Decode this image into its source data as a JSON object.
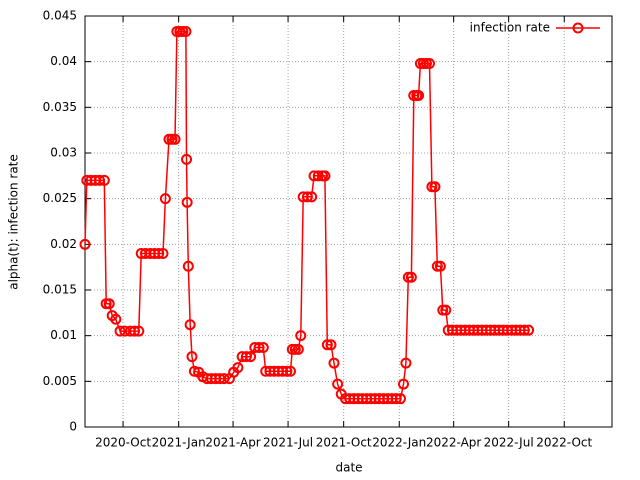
{
  "chart_data": {
    "type": "line",
    "xlabel": "date",
    "ylabel": "alpha(t): infection rate",
    "x": [
      "2020-07-30",
      "2020-08-02",
      "2020-08-09",
      "2020-08-16",
      "2020-08-23",
      "2020-08-31",
      "2020-09-03",
      "2020-09-08",
      "2020-09-13",
      "2020-09-19",
      "2020-09-26",
      "2020-10-04",
      "2020-10-13",
      "2020-10-20",
      "2020-10-27",
      "2020-10-31",
      "2020-11-07",
      "2020-11-15",
      "2020-11-22",
      "2020-11-29",
      "2020-12-06",
      "2020-12-10",
      "2020-12-16",
      "2020-12-21",
      "2020-12-26",
      "2020-12-29",
      "2021-01-03",
      "2021-01-08",
      "2021-01-13",
      "2021-01-14",
      "2021-01-15",
      "2021-01-17",
      "2021-01-20",
      "2021-01-23",
      "2021-01-27",
      "2021-02-03",
      "2021-02-10",
      "2021-02-17",
      "2021-02-24",
      "2021-03-03",
      "2021-03-10",
      "2021-03-17",
      "2021-03-26",
      "2021-04-02",
      "2021-04-09",
      "2021-04-16",
      "2021-04-23",
      "2021-04-30",
      "2021-05-07",
      "2021-05-14",
      "2021-05-21",
      "2021-05-25",
      "2021-06-01",
      "2021-06-08",
      "2021-06-15",
      "2021-06-22",
      "2021-06-29",
      "2021-07-05",
      "2021-07-08",
      "2021-07-13",
      "2021-07-18",
      "2021-07-22",
      "2021-07-26",
      "2021-08-02",
      "2021-08-09",
      "2021-08-13",
      "2021-08-20",
      "2021-08-27",
      "2021-08-31",
      "2021-09-04",
      "2021-09-10",
      "2021-09-15",
      "2021-09-21",
      "2021-09-27",
      "2021-10-04",
      "2021-10-11",
      "2021-10-18",
      "2021-10-25",
      "2021-11-01",
      "2021-11-08",
      "2021-11-15",
      "2021-11-22",
      "2021-11-29",
      "2021-12-06",
      "2021-12-13",
      "2021-12-20",
      "2021-12-27",
      "2022-01-03",
      "2022-01-08",
      "2022-01-12",
      "2022-01-16",
      "2022-01-21",
      "2022-01-25",
      "2022-01-30",
      "2022-02-02",
      "2022-02-05",
      "2022-02-10",
      "2022-02-15",
      "2022-02-20",
      "2022-02-24",
      "2022-03-01",
      "2022-03-05",
      "2022-03-10",
      "2022-03-14",
      "2022-03-19",
      "2022-03-23",
      "2022-03-30",
      "2022-04-06",
      "2022-04-13",
      "2022-04-20",
      "2022-04-27",
      "2022-05-04",
      "2022-05-11",
      "2022-05-18",
      "2022-05-25",
      "2022-06-01",
      "2022-06-08",
      "2022-06-15",
      "2022-06-22",
      "2022-06-29",
      "2022-07-06",
      "2022-07-13",
      "2022-07-20",
      "2022-07-27",
      "2022-08-03"
    ],
    "series": [
      {
        "name": "infection rate",
        "color": "#ff0000",
        "values": [
          0.02,
          0.027,
          0.027,
          0.027,
          0.027,
          0.027,
          0.0135,
          0.0135,
          0.0122,
          0.0118,
          0.0105,
          0.0105,
          0.0105,
          0.0105,
          0.0105,
          0.019,
          0.019,
          0.019,
          0.019,
          0.019,
          0.019,
          0.025,
          0.0315,
          0.0315,
          0.0315,
          0.0433,
          0.0433,
          0.0433,
          0.0433,
          0.0293,
          0.0246,
          0.0176,
          0.0112,
          0.0077,
          0.0061,
          0.006,
          0.0055,
          0.0053,
          0.0053,
          0.0053,
          0.0053,
          0.0053,
          0.0053,
          0.006,
          0.0065,
          0.0077,
          0.0077,
          0.0077,
          0.0087,
          0.0087,
          0.0087,
          0.0061,
          0.0061,
          0.0061,
          0.0061,
          0.0061,
          0.0061,
          0.0061,
          0.0085,
          0.0085,
          0.0085,
          0.01,
          0.0252,
          0.0252,
          0.0252,
          0.0275,
          0.0275,
          0.0275,
          0.0275,
          0.009,
          0.009,
          0.007,
          0.0047,
          0.0036,
          0.0031,
          0.0031,
          0.0031,
          0.0031,
          0.0031,
          0.0031,
          0.0031,
          0.0031,
          0.0031,
          0.0031,
          0.0031,
          0.0031,
          0.0031,
          0.0031,
          0.0047,
          0.007,
          0.0164,
          0.0164,
          0.0363,
          0.0363,
          0.0363,
          0.0398,
          0.0398,
          0.0398,
          0.0398,
          0.0263,
          0.0263,
          0.0176,
          0.0176,
          0.0128,
          0.0128,
          0.0106,
          0.0106,
          0.0106,
          0.0106,
          0.0106,
          0.0106,
          0.0106,
          0.0106,
          0.0106,
          0.0106,
          0.0106,
          0.0106,
          0.0106,
          0.0106,
          0.0106,
          0.0106,
          0.0106,
          0.0106,
          0.0106,
          0.0106
        ]
      }
    ],
    "xlim": [
      "2020-07-30",
      "2022-12-19"
    ],
    "xticks": [
      {
        "value": "2020-10-01",
        "label": "2020-Oct"
      },
      {
        "value": "2021-01-01",
        "label": "2021-Jan"
      },
      {
        "value": "2021-04-01",
        "label": "2021-Apr"
      },
      {
        "value": "2021-07-01",
        "label": "2021-Jul"
      },
      {
        "value": "2021-10-01",
        "label": "2021-Oct"
      },
      {
        "value": "2022-01-01",
        "label": "2022-Jan"
      },
      {
        "value": "2022-04-01",
        "label": "2022-Apr"
      },
      {
        "value": "2022-07-01",
        "label": "2022-Jul"
      },
      {
        "value": "2022-10-01",
        "label": "2022-Oct"
      }
    ],
    "ylim": [
      0,
      0.045
    ],
    "yticks": [
      0,
      0.005,
      0.01,
      0.015,
      0.02,
      0.025,
      0.03,
      0.035,
      0.04,
      0.045
    ],
    "grid": true,
    "legend": "top right"
  }
}
